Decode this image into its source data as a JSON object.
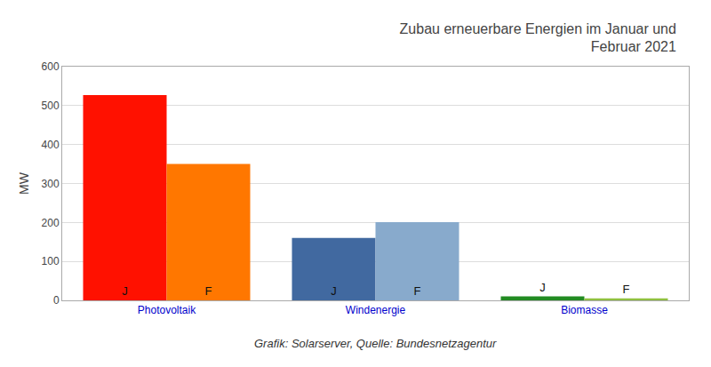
{
  "chart_data": {
    "type": "bar",
    "title": "Zubau erneuerbare Energien im Januar und\nFebruar 2021",
    "ylabel": "MW",
    "annotations": [
      "Grafik: Solarserver, Quelle: Bundesnetzagentur"
    ],
    "categories": [
      "Photovoltaik",
      "Windenergie",
      "Biomasse"
    ],
    "series": [
      {
        "name": "J",
        "values": [
          527,
          160,
          10
        ],
        "colors": [
          "#ff1100",
          "#4169a0",
          "#228B22"
        ]
      },
      {
        "name": "F",
        "values": [
          350,
          201,
          5
        ],
        "colors": [
          "#ff7700",
          "#88aacc",
          "#90c040"
        ]
      }
    ],
    "ylim": [
      0,
      600
    ],
    "yticks": [
      0,
      100,
      200,
      300,
      400,
      500,
      600
    ],
    "grid": true
  }
}
